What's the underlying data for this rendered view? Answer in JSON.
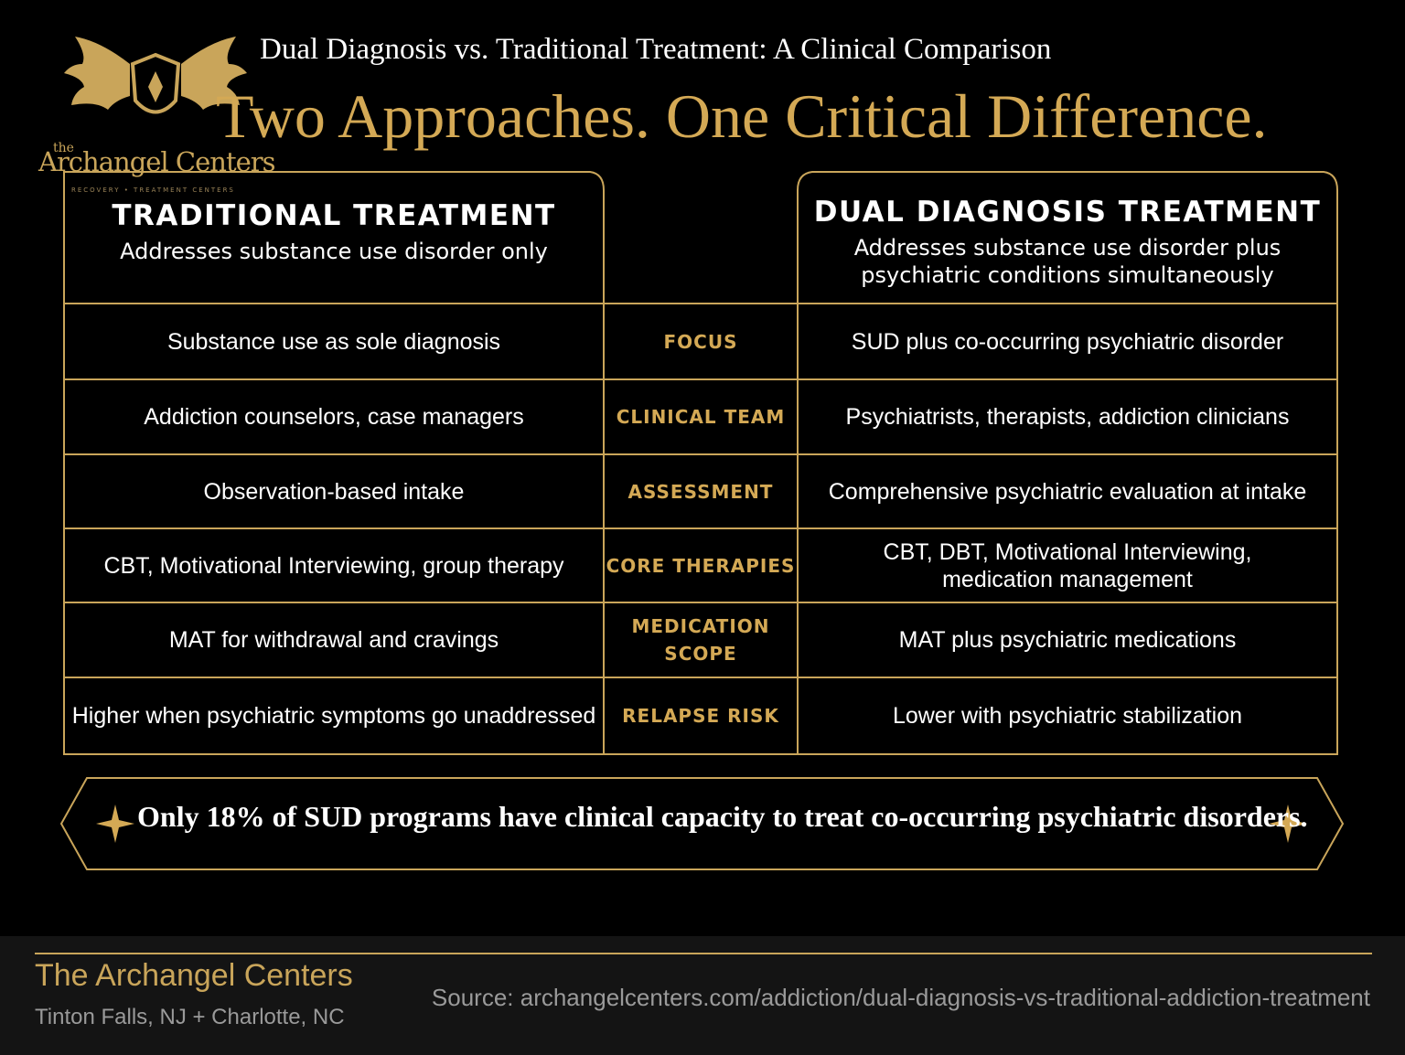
{
  "brand": {
    "logo_the": "the",
    "logo_name": "Archangel Centers",
    "logo_tagline": "RECOVERY • TREATMENT CENTERS",
    "gold": "#d4a955"
  },
  "header": {
    "subtitle": "Dual Diagnosis vs. Traditional Treatment: A Clinical Comparison",
    "headline": "Two Approaches. One Critical Difference."
  },
  "left_column": {
    "title": "TRADITIONAL TREATMENT",
    "description": "Addresses substance use disorder only"
  },
  "right_column": {
    "title": "DUAL DIAGNOSIS TREATMENT",
    "description_line1": "Addresses substance use disorder plus",
    "description_line2": "psychiatric conditions simultaneously"
  },
  "rows": [
    {
      "category": "FOCUS",
      "traditional": "Substance use as sole diagnosis",
      "dual": "SUD plus co-occurring psychiatric disorder"
    },
    {
      "category": "CLINICAL TEAM",
      "traditional": "Addiction counselors, case managers",
      "dual": "Psychiatrists, therapists, addiction clinicians"
    },
    {
      "category": "ASSESSMENT",
      "traditional": "Observation-based intake",
      "dual": "Comprehensive psychiatric evaluation at intake"
    },
    {
      "category": "CORE THERAPIES",
      "traditional": "CBT, Motivational Interviewing, group therapy",
      "dual": "CBT, DBT, Motivational Interviewing,\nmedication management"
    },
    {
      "category": "MEDICATION SCOPE",
      "traditional": "MAT for withdrawal and cravings",
      "dual": "MAT plus psychiatric medications"
    },
    {
      "category": "RELAPSE RISK",
      "traditional": "Higher when psychiatric symptoms go unaddressed",
      "dual": "Lower with psychiatric stabilization"
    }
  ],
  "banner": {
    "text": "Only 18% of SUD programs have clinical capacity to treat co-occurring psychiatric disorders."
  },
  "footer": {
    "name": "The Archangel Centers",
    "locations": "Tinton Falls, NJ + Charlotte, NC",
    "source": "Source: archangelcenters.com/addiction/dual-diagnosis-vs-traditional-addiction-treatment"
  }
}
